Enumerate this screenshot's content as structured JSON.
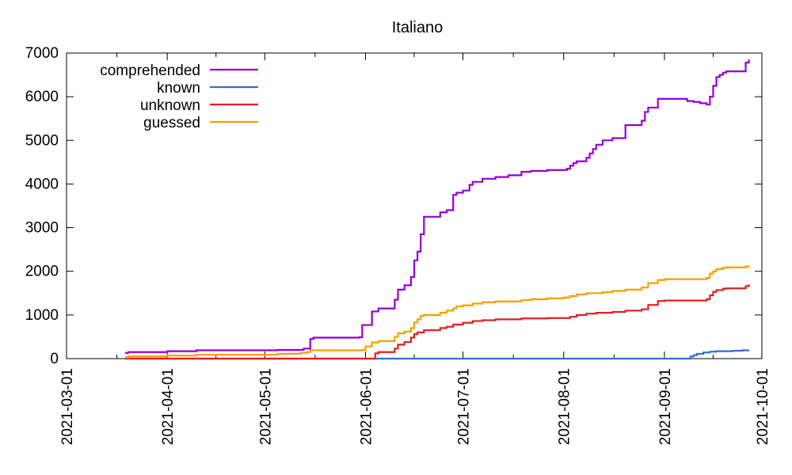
{
  "chart_data": {
    "type": "line",
    "title": "Italiano",
    "xlabel": "",
    "ylabel": "",
    "xlim": [
      "2021-03-01",
      "2021-10-01"
    ],
    "ylim": [
      0,
      7000
    ],
    "x_ticks": [
      "2021-03-01",
      "2021-04-01",
      "2021-05-01",
      "2021-06-01",
      "2021-07-01",
      "2021-08-01",
      "2021-09-01",
      "2021-10-01"
    ],
    "y_ticks": [
      "0",
      "1000",
      "2000",
      "3000",
      "4000",
      "5000",
      "6000",
      "7000"
    ],
    "legend_position": "top-left",
    "grid": false,
    "step_style": "steps",
    "series": [
      {
        "name": "comprehended",
        "color": "#9400d3",
        "points": [
          [
            "2021-03-19",
            130
          ],
          [
            "2021-03-20",
            150
          ],
          [
            "2021-04-01",
            170
          ],
          [
            "2021-04-10",
            190
          ],
          [
            "2021-05-05",
            200
          ],
          [
            "2021-05-13",
            230
          ],
          [
            "2021-05-15",
            450
          ],
          [
            "2021-05-16",
            480
          ],
          [
            "2021-05-30",
            490
          ],
          [
            "2021-05-31",
            770
          ],
          [
            "2021-06-03",
            1080
          ],
          [
            "2021-06-05",
            1150
          ],
          [
            "2021-06-10",
            1350
          ],
          [
            "2021-06-11",
            1580
          ],
          [
            "2021-06-13",
            1680
          ],
          [
            "2021-06-15",
            1870
          ],
          [
            "2021-06-16",
            2250
          ],
          [
            "2021-06-17",
            2450
          ],
          [
            "2021-06-18",
            2850
          ],
          [
            "2021-06-19",
            3250
          ],
          [
            "2021-06-24",
            3350
          ],
          [
            "2021-06-26",
            3400
          ],
          [
            "2021-06-28",
            3750
          ],
          [
            "2021-06-29",
            3800
          ],
          [
            "2021-07-01",
            3850
          ],
          [
            "2021-07-03",
            3980
          ],
          [
            "2021-07-04",
            4050
          ],
          [
            "2021-07-07",
            4120
          ],
          [
            "2021-07-11",
            4160
          ],
          [
            "2021-07-15",
            4200
          ],
          [
            "2021-07-19",
            4280
          ],
          [
            "2021-07-22",
            4300
          ],
          [
            "2021-07-27",
            4320
          ],
          [
            "2021-08-02",
            4350
          ],
          [
            "2021-08-03",
            4420
          ],
          [
            "2021-08-04",
            4480
          ],
          [
            "2021-08-05",
            4520
          ],
          [
            "2021-08-08",
            4600
          ],
          [
            "2021-08-09",
            4700
          ],
          [
            "2021-08-10",
            4800
          ],
          [
            "2021-08-11",
            4900
          ],
          [
            "2021-08-13",
            5000
          ],
          [
            "2021-08-16",
            5050
          ],
          [
            "2021-08-20",
            5350
          ],
          [
            "2021-08-25",
            5450
          ],
          [
            "2021-08-26",
            5650
          ],
          [
            "2021-08-27",
            5750
          ],
          [
            "2021-08-30",
            5950
          ],
          [
            "2021-09-08",
            5900
          ],
          [
            "2021-09-10",
            5880
          ],
          [
            "2021-09-12",
            5850
          ],
          [
            "2021-09-14",
            5820
          ],
          [
            "2021-09-15",
            6000
          ],
          [
            "2021-09-16",
            6250
          ],
          [
            "2021-09-17",
            6450
          ],
          [
            "2021-09-18",
            6500
          ],
          [
            "2021-09-19",
            6550
          ],
          [
            "2021-09-20",
            6580
          ],
          [
            "2021-09-26",
            6780
          ],
          [
            "2021-09-27",
            6850
          ]
        ]
      },
      {
        "name": "known",
        "color": "#3070d0",
        "points": [
          [
            "2021-03-19",
            0
          ],
          [
            "2021-09-08",
            0
          ],
          [
            "2021-09-09",
            50
          ],
          [
            "2021-09-10",
            80
          ],
          [
            "2021-09-11",
            110
          ],
          [
            "2021-09-13",
            140
          ],
          [
            "2021-09-15",
            160
          ],
          [
            "2021-09-17",
            170
          ],
          [
            "2021-09-22",
            180
          ],
          [
            "2021-09-25",
            190
          ],
          [
            "2021-09-27",
            195
          ]
        ]
      },
      {
        "name": "unknown",
        "color": "#e02020",
        "points": [
          [
            "2021-03-19",
            0
          ],
          [
            "2021-06-03",
            0
          ],
          [
            "2021-06-04",
            120
          ],
          [
            "2021-06-05",
            150
          ],
          [
            "2021-06-10",
            230
          ],
          [
            "2021-06-11",
            320
          ],
          [
            "2021-06-13",
            380
          ],
          [
            "2021-06-15",
            480
          ],
          [
            "2021-06-16",
            560
          ],
          [
            "2021-06-17",
            600
          ],
          [
            "2021-06-19",
            650
          ],
          [
            "2021-06-24",
            700
          ],
          [
            "2021-06-26",
            730
          ],
          [
            "2021-06-28",
            780
          ],
          [
            "2021-07-01",
            820
          ],
          [
            "2021-07-04",
            860
          ],
          [
            "2021-07-07",
            880
          ],
          [
            "2021-07-11",
            900
          ],
          [
            "2021-07-19",
            920
          ],
          [
            "2021-07-27",
            930
          ],
          [
            "2021-08-03",
            960
          ],
          [
            "2021-08-05",
            1000
          ],
          [
            "2021-08-08",
            1030
          ],
          [
            "2021-08-11",
            1050
          ],
          [
            "2021-08-16",
            1070
          ],
          [
            "2021-08-20",
            1100
          ],
          [
            "2021-08-25",
            1130
          ],
          [
            "2021-08-27",
            1230
          ],
          [
            "2021-08-30",
            1320
          ],
          [
            "2021-09-01",
            1330
          ],
          [
            "2021-09-14",
            1360
          ],
          [
            "2021-09-15",
            1450
          ],
          [
            "2021-09-16",
            1530
          ],
          [
            "2021-09-17",
            1570
          ],
          [
            "2021-09-19",
            1600
          ],
          [
            "2021-09-20",
            1610
          ],
          [
            "2021-09-26",
            1660
          ],
          [
            "2021-09-27",
            1700
          ]
        ]
      },
      {
        "name": "guessed",
        "color": "#f5a000",
        "points": [
          [
            "2021-03-19",
            30
          ],
          [
            "2021-03-20",
            50
          ],
          [
            "2021-04-01",
            70
          ],
          [
            "2021-04-10",
            90
          ],
          [
            "2021-05-05",
            110
          ],
          [
            "2021-05-12",
            130
          ],
          [
            "2021-05-14",
            150
          ],
          [
            "2021-05-15",
            190
          ],
          [
            "2021-05-31",
            200
          ],
          [
            "2021-06-01",
            280
          ],
          [
            "2021-06-03",
            370
          ],
          [
            "2021-06-05",
            400
          ],
          [
            "2021-06-10",
            500
          ],
          [
            "2021-06-11",
            580
          ],
          [
            "2021-06-13",
            620
          ],
          [
            "2021-06-15",
            700
          ],
          [
            "2021-06-16",
            830
          ],
          [
            "2021-06-17",
            900
          ],
          [
            "2021-06-18",
            980
          ],
          [
            "2021-06-19",
            1000
          ],
          [
            "2021-06-24",
            1050
          ],
          [
            "2021-06-26",
            1100
          ],
          [
            "2021-06-28",
            1150
          ],
          [
            "2021-06-29",
            1200
          ],
          [
            "2021-07-01",
            1220
          ],
          [
            "2021-07-04",
            1260
          ],
          [
            "2021-07-07",
            1290
          ],
          [
            "2021-07-11",
            1310
          ],
          [
            "2021-07-19",
            1340
          ],
          [
            "2021-07-22",
            1360
          ],
          [
            "2021-07-27",
            1380
          ],
          [
            "2021-08-01",
            1400
          ],
          [
            "2021-08-03",
            1430
          ],
          [
            "2021-08-05",
            1470
          ],
          [
            "2021-08-08",
            1500
          ],
          [
            "2021-08-13",
            1520
          ],
          [
            "2021-08-16",
            1550
          ],
          [
            "2021-08-20",
            1580
          ],
          [
            "2021-08-25",
            1630
          ],
          [
            "2021-08-27",
            1730
          ],
          [
            "2021-08-30",
            1800
          ],
          [
            "2021-09-01",
            1820
          ],
          [
            "2021-09-14",
            1850
          ],
          [
            "2021-09-15",
            1950
          ],
          [
            "2021-09-16",
            2000
          ],
          [
            "2021-09-17",
            2050
          ],
          [
            "2021-09-19",
            2080
          ],
          [
            "2021-09-20",
            2090
          ],
          [
            "2021-09-26",
            2110
          ],
          [
            "2021-09-27",
            2130
          ]
        ]
      }
    ]
  }
}
